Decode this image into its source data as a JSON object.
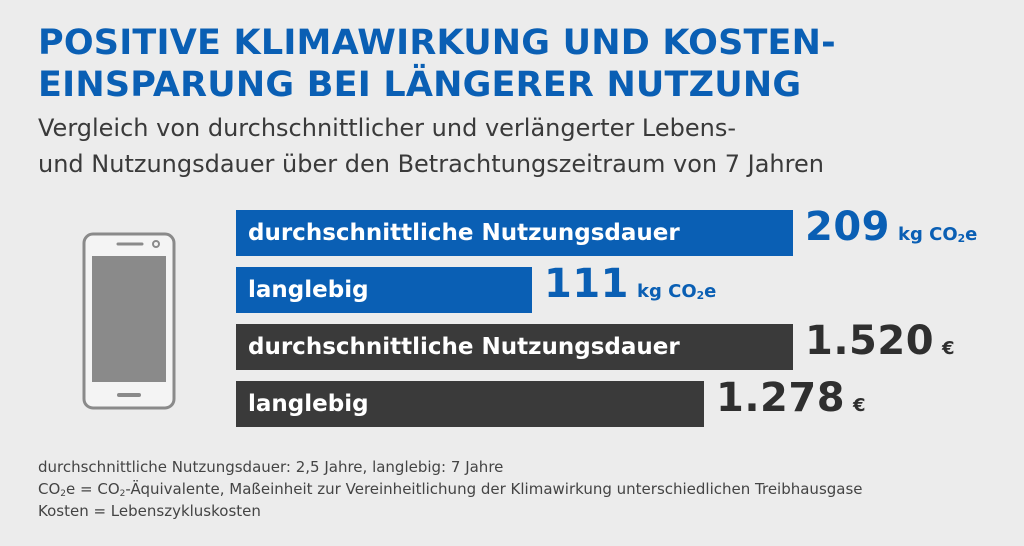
{
  "title_lines": [
    "POSITIVE KLIMAWIRKUNG UND KOSTEN-",
    "EINSPARUNG BEI LÄNGERER NUTZUNG"
  ],
  "subtitle_lines": [
    "Vergleich von durchschnittlicher und verlängerter Lebens-",
    "und Nutzungsdauer über den Betrachtungszeitraum von 7 Jahren"
  ],
  "icon": "smartphone-icon",
  "colors": {
    "climate": "#0a5fb4",
    "cost": "#3a3a3a",
    "background": "#ececec"
  },
  "chart_data": [
    {
      "type": "bar",
      "orientation": "horizontal",
      "categories": [
        "durchschnittliche Nutzungsdauer",
        "langlebig"
      ],
      "values": [
        209,
        111
      ],
      "value_labels": [
        "209",
        "111"
      ],
      "unit_prefix": "kg CO",
      "unit_sub": "2",
      "unit_suffix": "e"
    },
    {
      "type": "bar",
      "orientation": "horizontal",
      "categories": [
        "durchschnittliche Nutzungsdauer",
        "langlebig"
      ],
      "values": [
        1520,
        1278
      ],
      "value_labels": [
        "1.520",
        "1.278"
      ],
      "unit": "€"
    }
  ],
  "notes": {
    "line1": "durchschnittliche Nutzungsdauer: 2,5 Jahre, langlebig: 7 Jahre",
    "line2_a": "CO",
    "line2_b": "e = CO",
    "line2_c": "-Äquivalente, Maßeinheit zur Vereinheitlichung der Klimawirkung unterschiedlichen Treibhausgase",
    "line2_sub": "2",
    "line3": "Kosten = Lebenszykluskosten"
  }
}
